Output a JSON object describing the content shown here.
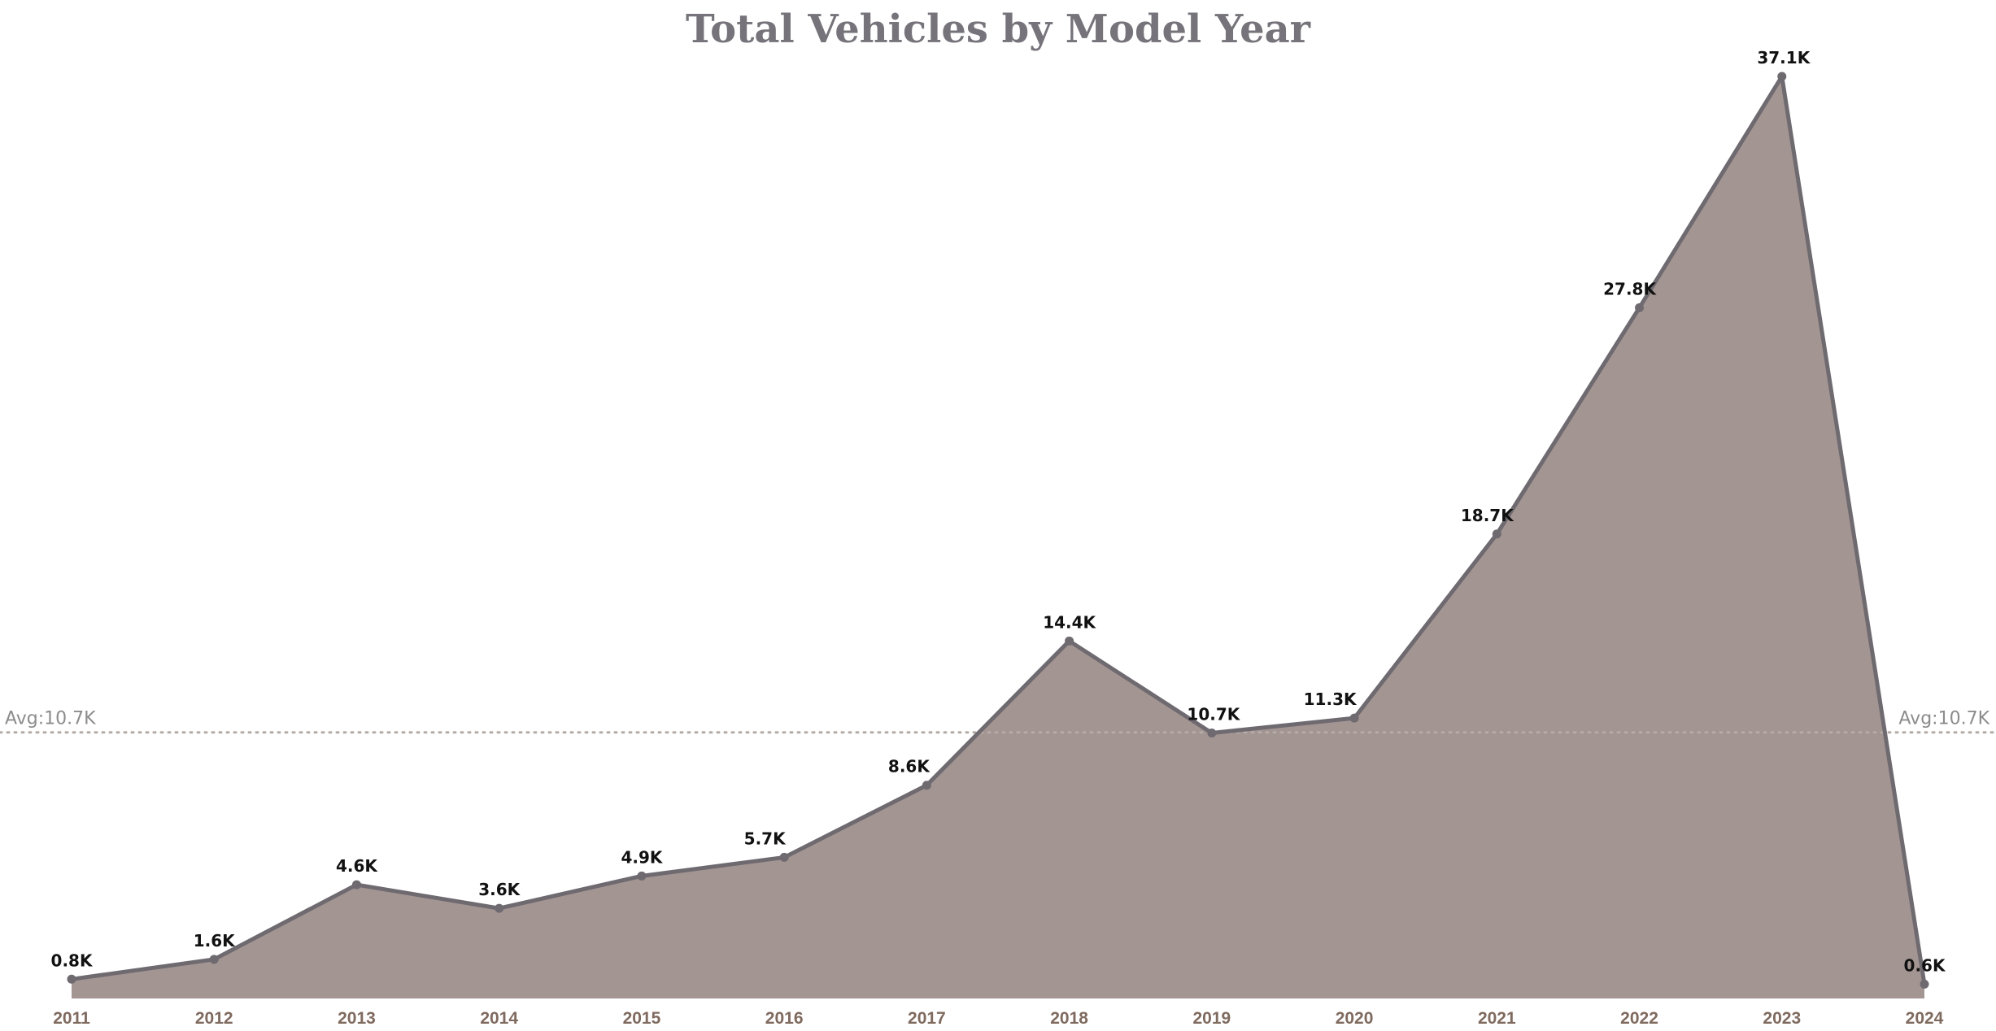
{
  "chart_data": {
    "type": "area",
    "title": "Total Vehicles by Model Year",
    "xlabel": "",
    "ylabel": "",
    "categories": [
      "2011",
      "2012",
      "2013",
      "2014",
      "2015",
      "2016",
      "2017",
      "2018",
      "2019",
      "2020",
      "2021",
      "2022",
      "2023",
      "2024"
    ],
    "values": [
      775,
      1575,
      4575,
      3625,
      4925,
      5675,
      8575,
      14375,
      10675,
      11275,
      18675,
      27775,
      37075,
      575
    ],
    "data_labels": [
      "0.8K",
      "1.6K",
      "4.6K",
      "3.6K",
      "4.9K",
      "5.7K",
      "8.6K",
      "14.4K",
      "10.7K",
      "11.3K",
      "18.7K",
      "27.8K",
      "37.1K",
      "0.6K"
    ],
    "ylim": [
      0,
      38000
    ],
    "grid": false,
    "legend": "none",
    "reference_line": {
      "value": 10700,
      "label": "Avg:10.7K"
    },
    "colors": {
      "fill": "#a39592",
      "line": "#6e6a70",
      "reference": "#b5aba7",
      "tick": "#7f6a5f",
      "title": "#76737a"
    }
  }
}
